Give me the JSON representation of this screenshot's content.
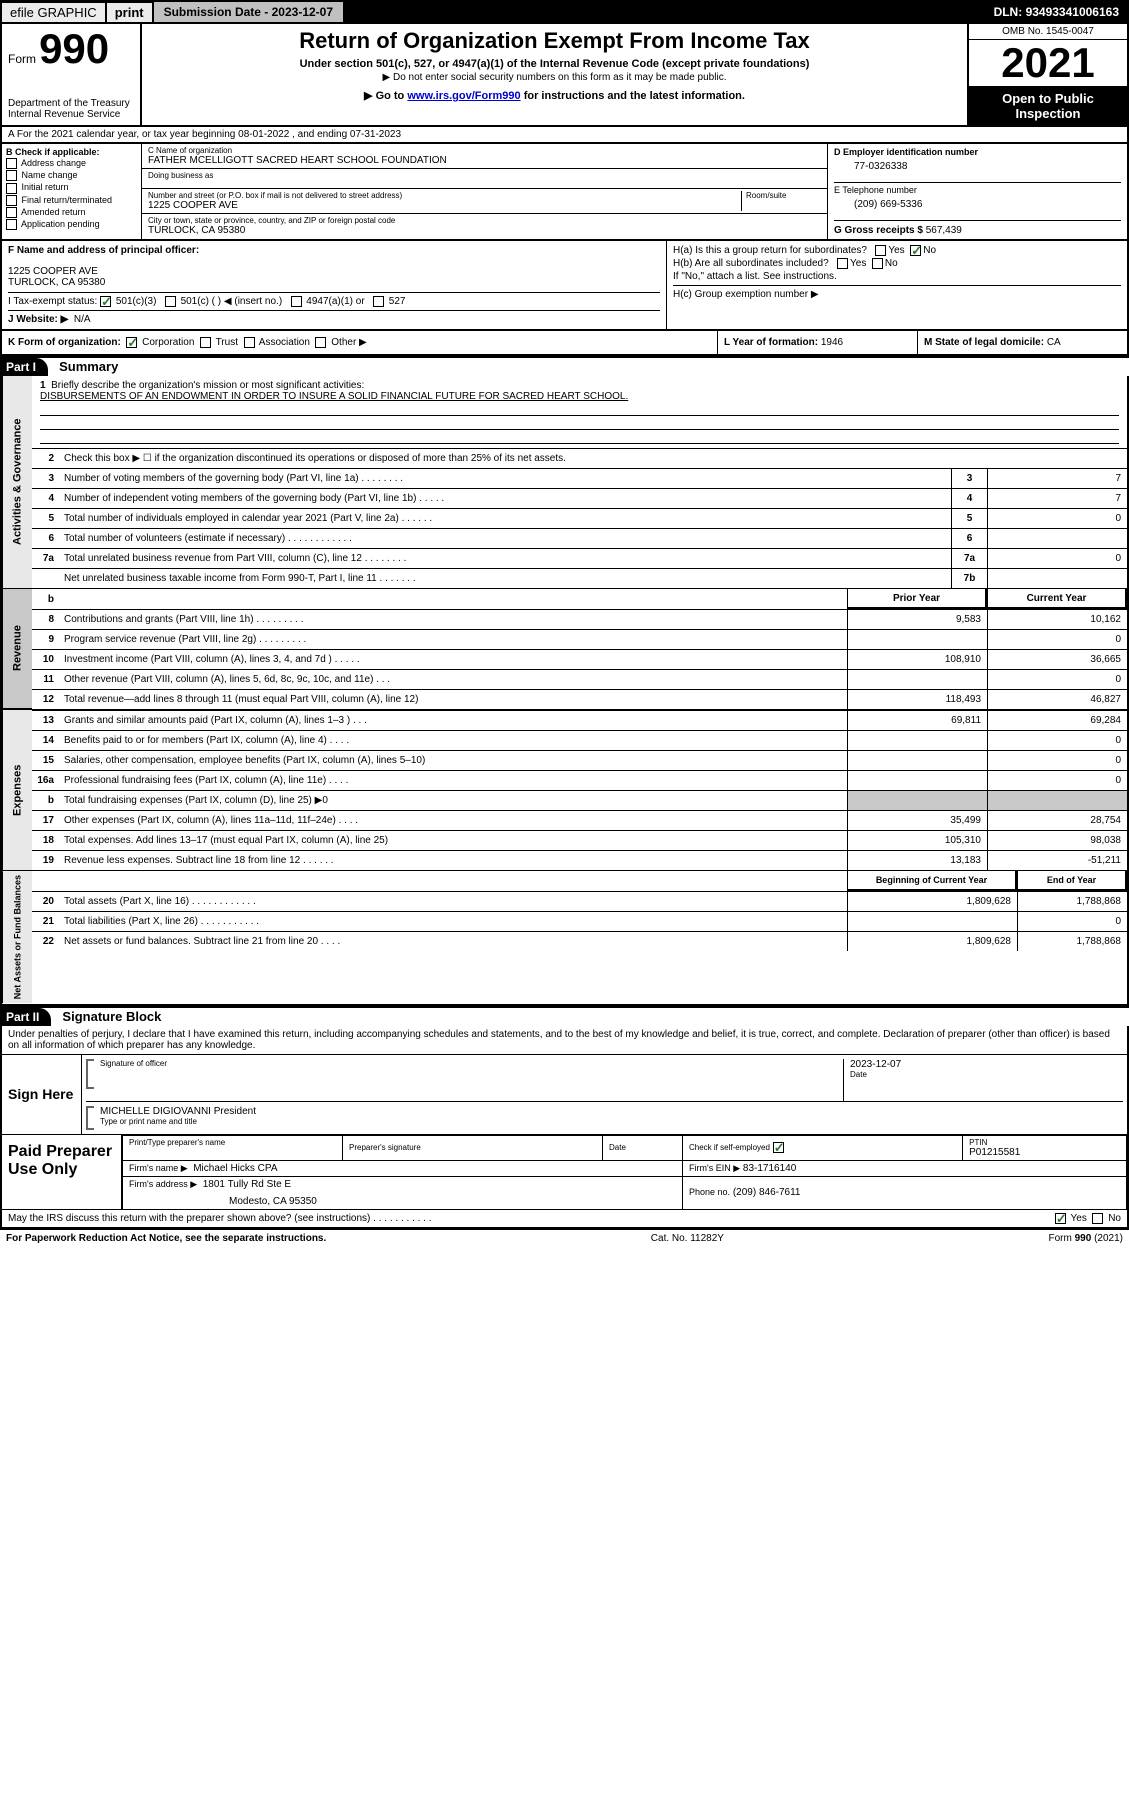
{
  "topbar": {
    "efile": "efile GRAPHIC",
    "print": "print",
    "submission_label": "Submission Date - ",
    "submission_date": "2023-12-07",
    "dln_label": "DLN: ",
    "dln": "93493341006163"
  },
  "header": {
    "form_word": "Form",
    "form_number": "990",
    "title": "Return of Organization Exempt From Income Tax",
    "subtitle": "Under section 501(c), 527, or 4947(a)(1) of the Internal Revenue Code (except private foundations)",
    "note1": "▶ Do not enter social security numbers on this form as it may be made public.",
    "note2_pre": "▶ Go to ",
    "note2_link": "www.irs.gov/Form990",
    "note2_post": " for instructions and the latest information.",
    "dept1": "Department of the Treasury",
    "dept2": "Internal Revenue Service",
    "omb": "OMB No. 1545-0047",
    "year": "2021",
    "opi": "Open to Public Inspection"
  },
  "rowA": "A  For the 2021 calendar year, or tax year beginning 08-01-2022   , and ending 07-31-2023",
  "colB": {
    "title": "B Check if applicable:",
    "items": [
      "Address change",
      "Name change",
      "Initial return",
      "Final return/terminated",
      "Amended return",
      "Application pending"
    ]
  },
  "colC": {
    "name_label": "C Name of organization",
    "name": "FATHER MCELLIGOTT SACRED HEART SCHOOL FOUNDATION",
    "dba_label": "Doing business as",
    "addr_label": "Number and street (or P.O. box if mail is not delivered to street address)",
    "room_label": "Room/suite",
    "addr": "1225 COOPER AVE",
    "city_label": "City or town, state or province, country, and ZIP or foreign postal code",
    "city": "TURLOCK, CA  95380"
  },
  "colD": {
    "ein_label": "D Employer identification number",
    "ein": "77-0326338",
    "phone_label": "E Telephone number",
    "phone": "(209) 669-5336",
    "gross_label": "G Gross receipts $",
    "gross": "567,439"
  },
  "rowF": {
    "label": "F Name and address of principal officer:",
    "line1": "1225 COOPER AVE",
    "line2": "TURLOCK, CA  95380"
  },
  "rowH": {
    "ha": "H(a)  Is this a group return for subordinates?",
    "hb": "H(b)  Are all subordinates included?",
    "hnote": "If \"No,\" attach a list. See instructions.",
    "hc": "H(c)  Group exemption number ▶",
    "yes": "Yes",
    "no": "No"
  },
  "rowI": {
    "label": "I   Tax-exempt status:",
    "opts": [
      "501(c)(3)",
      "501(c) (  ) ◀ (insert no.)",
      "4947(a)(1) or",
      "527"
    ]
  },
  "rowJ": {
    "label": "J   Website: ▶",
    "val": "N/A"
  },
  "rowK": {
    "label": "K Form of organization:",
    "opts": [
      "Corporation",
      "Trust",
      "Association",
      "Other ▶"
    ],
    "year_label": "L Year of formation:",
    "year": "1946",
    "dom_label": "M State of legal domicile:",
    "dom": "CA"
  },
  "part1": {
    "tag": "Part I",
    "title": "Summary"
  },
  "summary": {
    "q1": "Briefly describe the organization's mission or most significant activities:",
    "mission": "DISBURSEMENTS OF AN ENDOWMENT IN ORDER TO INSURE A SOLID FINANCIAL FUTURE FOR SACRED HEART SCHOOL.",
    "q2": "Check this box ▶ ☐  if the organization discontinued its operations or disposed of more than 25% of its net assets.",
    "lines_gov": [
      {
        "n": "3",
        "t": "Number of voting members of the governing body (Part VI, line 1a)   .    .    .    .    .    .    .    .",
        "box": "3",
        "v": "7"
      },
      {
        "n": "4",
        "t": "Number of independent voting members of the governing body (Part VI, line 1b)  .    .    .    .    .",
        "box": "4",
        "v": "7"
      },
      {
        "n": "5",
        "t": "Total number of individuals employed in calendar year 2021 (Part V, line 2a)   .    .    .    .    .    .",
        "box": "5",
        "v": "0"
      },
      {
        "n": "6",
        "t": "Total number of volunteers (estimate if necessary)   .    .    .    .    .    .    .    .    .    .    .    .",
        "box": "6",
        "v": ""
      },
      {
        "n": "7a",
        "t": "Total unrelated business revenue from Part VIII, column (C), line 12   .    .    .    .    .    .    .    .",
        "box": "7a",
        "v": "0"
      },
      {
        "n": "",
        "t": "Net unrelated business taxable income from Form 990-T, Part I, line 11   .    .    .    .    .    .    .",
        "box": "7b",
        "v": ""
      }
    ],
    "col_hdr": {
      "b": "b",
      "prior": "Prior Year",
      "curr": "Current Year"
    },
    "lines_rev": [
      {
        "n": "8",
        "t": "Contributions and grants (Part VIII, line 1h)   .    .    .    .    .    .    .    .    .",
        "p": "9,583",
        "c": "10,162"
      },
      {
        "n": "9",
        "t": "Program service revenue (Part VIII, line 2g)   .    .    .    .    .    .    .    .    .",
        "p": "",
        "c": "0"
      },
      {
        "n": "10",
        "t": "Investment income (Part VIII, column (A), lines 3, 4, and 7d )   .    .    .    .    .",
        "p": "108,910",
        "c": "36,665"
      },
      {
        "n": "11",
        "t": "Other revenue (Part VIII, column (A), lines 5, 6d, 8c, 9c, 10c, and 11e)   .    .    .",
        "p": "",
        "c": "0"
      },
      {
        "n": "12",
        "t": "Total revenue—add lines 8 through 11 (must equal Part VIII, column (A), line 12)",
        "p": "118,493",
        "c": "46,827"
      }
    ],
    "lines_exp": [
      {
        "n": "13",
        "t": "Grants and similar amounts paid (Part IX, column (A), lines 1–3 )   .    .    .",
        "p": "69,811",
        "c": "69,284"
      },
      {
        "n": "14",
        "t": "Benefits paid to or for members (Part IX, column (A), line 4)   .    .    .    .",
        "p": "",
        "c": "0"
      },
      {
        "n": "15",
        "t": "Salaries, other compensation, employee benefits (Part IX, column (A), lines 5–10)",
        "p": "",
        "c": "0"
      },
      {
        "n": "16a",
        "t": "Professional fundraising fees (Part IX, column (A), line 11e)   .    .    .    .",
        "p": "",
        "c": "0"
      },
      {
        "n": "b",
        "t": "Total fundraising expenses (Part IX, column (D), line 25) ▶0",
        "p": "_SHADE_",
        "c": "_SHADE_"
      },
      {
        "n": "17",
        "t": "Other expenses (Part IX, column (A), lines 11a–11d, 11f–24e)   .    .    .    .",
        "p": "35,499",
        "c": "28,754"
      },
      {
        "n": "18",
        "t": "Total expenses. Add lines 13–17 (must equal Part IX, column (A), line 25)",
        "p": "105,310",
        "c": "98,038"
      },
      {
        "n": "19",
        "t": "Revenue less expenses. Subtract line 18 from line 12   .    .    .    .    .    .",
        "p": "13,183",
        "c": "-51,211"
      }
    ],
    "net_hdr": {
      "p": "Beginning of Current Year",
      "c": "End of Year"
    },
    "lines_net": [
      {
        "n": "20",
        "t": "Total assets (Part X, line 16)   .    .    .    .    .    .    .    .    .    .    .    .",
        "p": "1,809,628",
        "c": "1,788,868"
      },
      {
        "n": "21",
        "t": "Total liabilities (Part X, line 26)   .    .    .    .    .    .    .    .    .    .    .",
        "p": "",
        "c": "0"
      },
      {
        "n": "22",
        "t": "Net assets or fund balances. Subtract line 21 from line 20   .    .    .    .",
        "p": "1,809,628",
        "c": "1,788,868"
      }
    ],
    "vlabels": {
      "gov": "Activities & Governance",
      "rev": "Revenue",
      "exp": "Expenses",
      "net": "Net Assets or Fund Balances"
    }
  },
  "part2": {
    "tag": "Part II",
    "title": "Signature Block"
  },
  "sig": {
    "decl": "Under penalties of perjury, I declare that I have examined this return, including accompanying schedules and statements, and to the best of my knowledge and belief, it is true, correct, and complete. Declaration of preparer (other than officer) is based on all information of which preparer has any knowledge.",
    "sign_here": "Sign Here",
    "sig_officer": "Signature of officer",
    "date_lbl": "Date",
    "date": "2023-12-07",
    "name": "MICHELLE DIGIOVANNI President",
    "name_lbl": "Type or print name and title",
    "paid": "Paid Preparer Use Only",
    "pt_name_lbl": "Print/Type preparer's name",
    "pt_sig_lbl": "Preparer's signature",
    "check_lbl": "Check          if self-employed",
    "ptin_lbl": "PTIN",
    "ptin": "P01215581",
    "firm_name_lbl": "Firm's name    ▶",
    "firm_name": "Michael Hicks CPA",
    "firm_ein_lbl": "Firm's EIN ▶",
    "firm_ein": "83-1716140",
    "firm_addr_lbl": "Firm's address ▶",
    "firm_addr1": "1801 Tully Rd Ste E",
    "firm_addr2": "Modesto, CA  95350",
    "phone_lbl": "Phone no.",
    "phone": "(209) 846-7611",
    "discuss": "May the IRS discuss this return with the preparer shown above? (see instructions)   .    .    .    .    .    .    .    .    .    .    ."
  },
  "footer": {
    "pra": "For Paperwork Reduction Act Notice, see the separate instructions.",
    "cat": "Cat. No. 11282Y",
    "form": "Form 990 (2021)"
  }
}
